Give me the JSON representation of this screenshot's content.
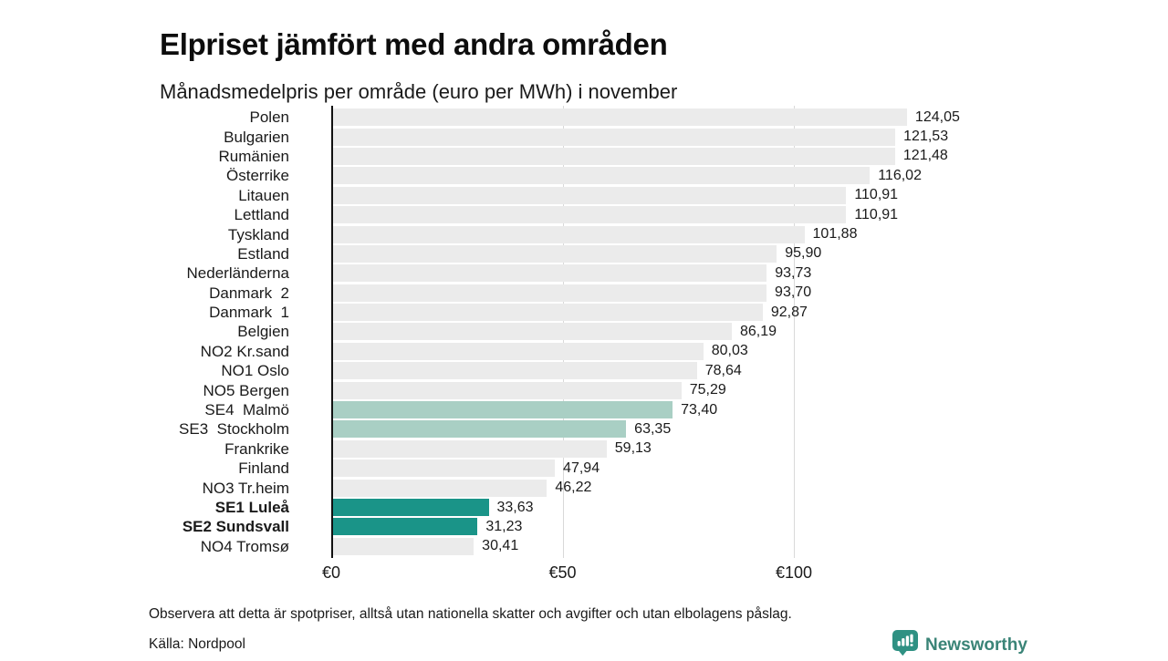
{
  "title": "Elpriset jämfört med andra områden",
  "subtitle": "Månadsmedelpris per område (euro per MWh) i november",
  "chart_data": {
    "type": "bar",
    "orientation": "horizontal",
    "title": "Elpriset jämfört med andra områden",
    "subtitle": "Månadsmedelpris per område (euro per MWh) i november",
    "unit": "euro per MWh",
    "categories": [
      "Polen",
      "Bulgarien",
      "Rumänien",
      "Österrike",
      "Litauen",
      "Lettland",
      "Tyskland",
      "Estland",
      "Nederländerna",
      "Danmark  2",
      "Danmark  1",
      "Belgien",
      "NO2 Kr.sand",
      "NO1 Oslo",
      "NO5 Bergen",
      "SE4  Malmö",
      "SE3  Stockholm",
      "Frankrike",
      "Finland",
      "NO3 Tr.heim",
      "SE1 Luleå",
      "SE2 Sundsvall",
      "NO4 Tromsø"
    ],
    "values": [
      124.05,
      121.53,
      121.48,
      116.02,
      110.91,
      110.91,
      101.88,
      95.9,
      93.73,
      93.7,
      92.87,
      86.19,
      80.03,
      78.64,
      75.29,
      73.4,
      63.35,
      59.13,
      47.94,
      46.22,
      33.63,
      31.23,
      30.41
    ],
    "value_labels": [
      "124,05",
      "121,53",
      "121,48",
      "116,02",
      "110,91",
      "110,91",
      "101,88",
      "95,90",
      "93,73",
      "93,70",
      "92,87",
      "86,19",
      "80,03",
      "78,64",
      "75,29",
      "73,40",
      "63,35",
      "59,13",
      "47,94",
      "46,22",
      "33,63",
      "31,23",
      "30,41"
    ],
    "bar_styles": [
      "base",
      "base",
      "base",
      "base",
      "base",
      "base",
      "base",
      "base",
      "base",
      "base",
      "base",
      "base",
      "base",
      "base",
      "base",
      "light",
      "light",
      "base",
      "base",
      "base",
      "dark",
      "dark",
      "base"
    ],
    "bold_categories": [
      "SE1 Luleå",
      "SE2 Sundsvall"
    ],
    "colors": {
      "base": "#ebebeb",
      "light": "#a9cfc4",
      "dark": "#1a9488"
    },
    "xticks": [
      {
        "value": 0,
        "label": "€0"
      },
      {
        "value": 50,
        "label": "€50"
      },
      {
        "value": 100,
        "label": "€100"
      }
    ],
    "xlim": [
      0,
      130
    ],
    "grid": "vertical",
    "legend": "none"
  },
  "footer": {
    "note": "Observera att detta är spotpriser, alltså utan nationella skatter och avgifter och utan elbolagens påslag.",
    "source": "Källa: Nordpool",
    "brand": "Newsworthy"
  }
}
